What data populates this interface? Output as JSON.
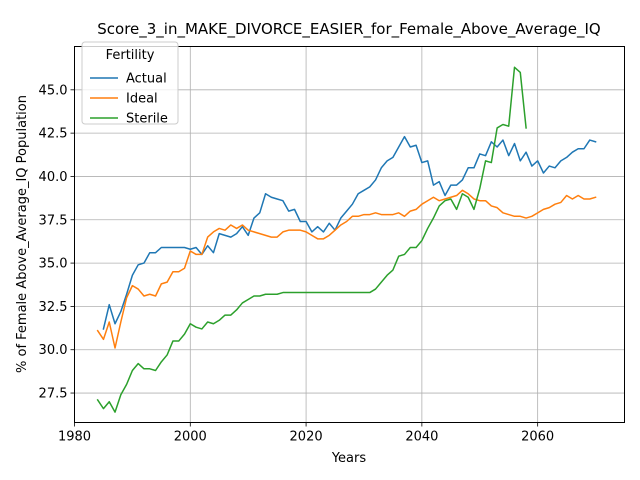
{
  "chart_data": {
    "type": "line",
    "title": "Score_3_in_MAKE_DIVORCE_EASIER_for_Female_Above_Average_IQ",
    "xlabel": "Years",
    "ylabel": "% of Female Above_Average_IQ Population",
    "xlim": [
      1980,
      2075
    ],
    "ylim": [
      25.8,
      47.5
    ],
    "xticks": [
      1980,
      2000,
      2020,
      2040,
      2060
    ],
    "yticks": [
      27.5,
      30.0,
      32.5,
      35.0,
      37.5,
      40.0,
      42.5,
      45.0
    ],
    "ytick_labels": [
      "27.5",
      "30.0",
      "32.5",
      "35.0",
      "37.5",
      "40.0",
      "42.5",
      "45.0"
    ],
    "grid": true,
    "legend": {
      "title": "Fertility",
      "placement": "top-left"
    },
    "series": [
      {
        "name": "Actual",
        "color": "#1f77b4",
        "x": [
          1985,
          1986,
          1987,
          1988,
          1989,
          1990,
          1991,
          1992,
          1993,
          1994,
          1995,
          1996,
          1997,
          1998,
          1999,
          2000,
          2001,
          2002,
          2003,
          2004,
          2005,
          2006,
          2007,
          2008,
          2009,
          2010,
          2011,
          2012,
          2013,
          2014,
          2015,
          2016,
          2017,
          2018,
          2019,
          2020,
          2021,
          2022,
          2023,
          2024,
          2025,
          2026,
          2027,
          2028,
          2029,
          2030,
          2031,
          2032,
          2033,
          2034,
          2035,
          2036,
          2037,
          2038,
          2039,
          2040,
          2041,
          2042,
          2043,
          2044,
          2045,
          2046,
          2047,
          2048,
          2049,
          2050,
          2051,
          2052,
          2053,
          2054,
          2055,
          2056,
          2057,
          2058,
          2059,
          2060,
          2061,
          2062,
          2063,
          2064,
          2065,
          2066,
          2067,
          2068,
          2069,
          2070
        ],
        "values": [
          31.2,
          32.6,
          31.5,
          32.2,
          33.2,
          34.3,
          34.9,
          35.0,
          35.6,
          35.6,
          35.9,
          35.9,
          35.9,
          35.9,
          35.9,
          35.8,
          35.9,
          35.5,
          36.0,
          35.6,
          36.7,
          36.6,
          36.5,
          36.7,
          37.1,
          36.6,
          37.6,
          37.9,
          39.0,
          38.8,
          38.7,
          38.6,
          38.0,
          38.1,
          37.4,
          37.4,
          36.8,
          37.1,
          36.8,
          37.3,
          36.9,
          37.6,
          38.0,
          38.4,
          39.0,
          39.2,
          39.4,
          39.8,
          40.5,
          40.9,
          41.1,
          41.7,
          42.3,
          41.7,
          41.8,
          40.8,
          40.9,
          39.5,
          39.7,
          38.9,
          39.5,
          39.5,
          39.8,
          40.5,
          40.5,
          41.3,
          41.2,
          42.0,
          41.7,
          42.1,
          41.2,
          41.9,
          40.9,
          41.4,
          40.6,
          40.9,
          40.2,
          40.6,
          40.5,
          40.9,
          41.1,
          41.4,
          41.6,
          41.6,
          42.1,
          42.0
        ]
      },
      {
        "name": "Ideal",
        "color": "#ff7f0e",
        "x": [
          1984,
          1985,
          1986,
          1987,
          1988,
          1989,
          1990,
          1991,
          1992,
          1993,
          1994,
          1995,
          1996,
          1997,
          1998,
          1999,
          2000,
          2001,
          2002,
          2003,
          2004,
          2005,
          2006,
          2007,
          2008,
          2009,
          2010,
          2011,
          2012,
          2013,
          2014,
          2015,
          2016,
          2017,
          2018,
          2019,
          2020,
          2021,
          2022,
          2023,
          2024,
          2025,
          2026,
          2027,
          2028,
          2029,
          2030,
          2031,
          2032,
          2033,
          2034,
          2035,
          2036,
          2037,
          2038,
          2039,
          2040,
          2041,
          2042,
          2043,
          2044,
          2045,
          2046,
          2047,
          2048,
          2049,
          2050,
          2051,
          2052,
          2053,
          2054,
          2055,
          2056,
          2057,
          2058,
          2059,
          2060,
          2061,
          2062,
          2063,
          2064,
          2065,
          2066,
          2067,
          2068,
          2069,
          2070
        ],
        "values": [
          31.1,
          30.6,
          31.6,
          30.1,
          31.6,
          33.0,
          33.7,
          33.5,
          33.1,
          33.2,
          33.1,
          33.8,
          33.9,
          34.5,
          34.5,
          34.7,
          35.7,
          35.5,
          35.5,
          36.5,
          36.8,
          37.0,
          36.9,
          37.2,
          37.0,
          37.2,
          36.9,
          36.8,
          36.7,
          36.6,
          36.5,
          36.5,
          36.8,
          36.9,
          36.9,
          36.9,
          36.8,
          36.6,
          36.4,
          36.4,
          36.6,
          36.9,
          37.2,
          37.4,
          37.7,
          37.7,
          37.8,
          37.8,
          37.9,
          37.8,
          37.8,
          37.8,
          37.9,
          37.7,
          38.0,
          38.1,
          38.4,
          38.6,
          38.8,
          38.6,
          38.7,
          38.8,
          38.9,
          39.2,
          39.0,
          38.7,
          38.6,
          38.6,
          38.3,
          38.2,
          37.9,
          37.8,
          37.7,
          37.7,
          37.6,
          37.7,
          37.9,
          38.1,
          38.2,
          38.4,
          38.5,
          38.9,
          38.7,
          38.9,
          38.7,
          38.7,
          38.8
        ]
      },
      {
        "name": "Sterile",
        "color": "#2ca02c",
        "x": [
          1984,
          1985,
          1986,
          1987,
          1988,
          1989,
          1990,
          1991,
          1992,
          1993,
          1994,
          1995,
          1996,
          1997,
          1998,
          1999,
          2000,
          2001,
          2002,
          2003,
          2004,
          2005,
          2006,
          2007,
          2008,
          2009,
          2010,
          2011,
          2012,
          2013,
          2014,
          2015,
          2016,
          2017,
          2018,
          2019,
          2020,
          2021,
          2022,
          2023,
          2024,
          2025,
          2026,
          2027,
          2028,
          2029,
          2030,
          2031,
          2032,
          2033,
          2034,
          2035,
          2036,
          2037,
          2038,
          2039,
          2040,
          2041,
          2042,
          2043,
          2044,
          2045,
          2046,
          2047,
          2048,
          2049,
          2050,
          2051,
          2052,
          2053,
          2054,
          2055,
          2056,
          2057,
          2058
        ],
        "values": [
          27.1,
          26.6,
          27.0,
          26.4,
          27.4,
          28.0,
          28.8,
          29.2,
          28.9,
          28.9,
          28.8,
          29.3,
          29.7,
          30.5,
          30.5,
          30.9,
          31.5,
          31.3,
          31.2,
          31.6,
          31.5,
          31.7,
          32.0,
          32.0,
          32.3,
          32.7,
          32.9,
          33.1,
          33.1,
          33.2,
          33.2,
          33.2,
          33.3,
          33.3,
          33.3,
          33.3,
          33.3,
          33.3,
          33.3,
          33.3,
          33.3,
          33.3,
          33.3,
          33.3,
          33.3,
          33.3,
          33.3,
          33.3,
          33.5,
          33.9,
          34.3,
          34.6,
          35.4,
          35.5,
          35.9,
          35.9,
          36.3,
          37.0,
          37.6,
          38.3,
          38.6,
          38.7,
          38.1,
          39.0,
          38.8,
          38.1,
          39.3,
          40.9,
          40.8,
          42.8,
          43.0,
          42.9,
          46.3,
          46.0,
          42.8
        ]
      }
    ]
  }
}
